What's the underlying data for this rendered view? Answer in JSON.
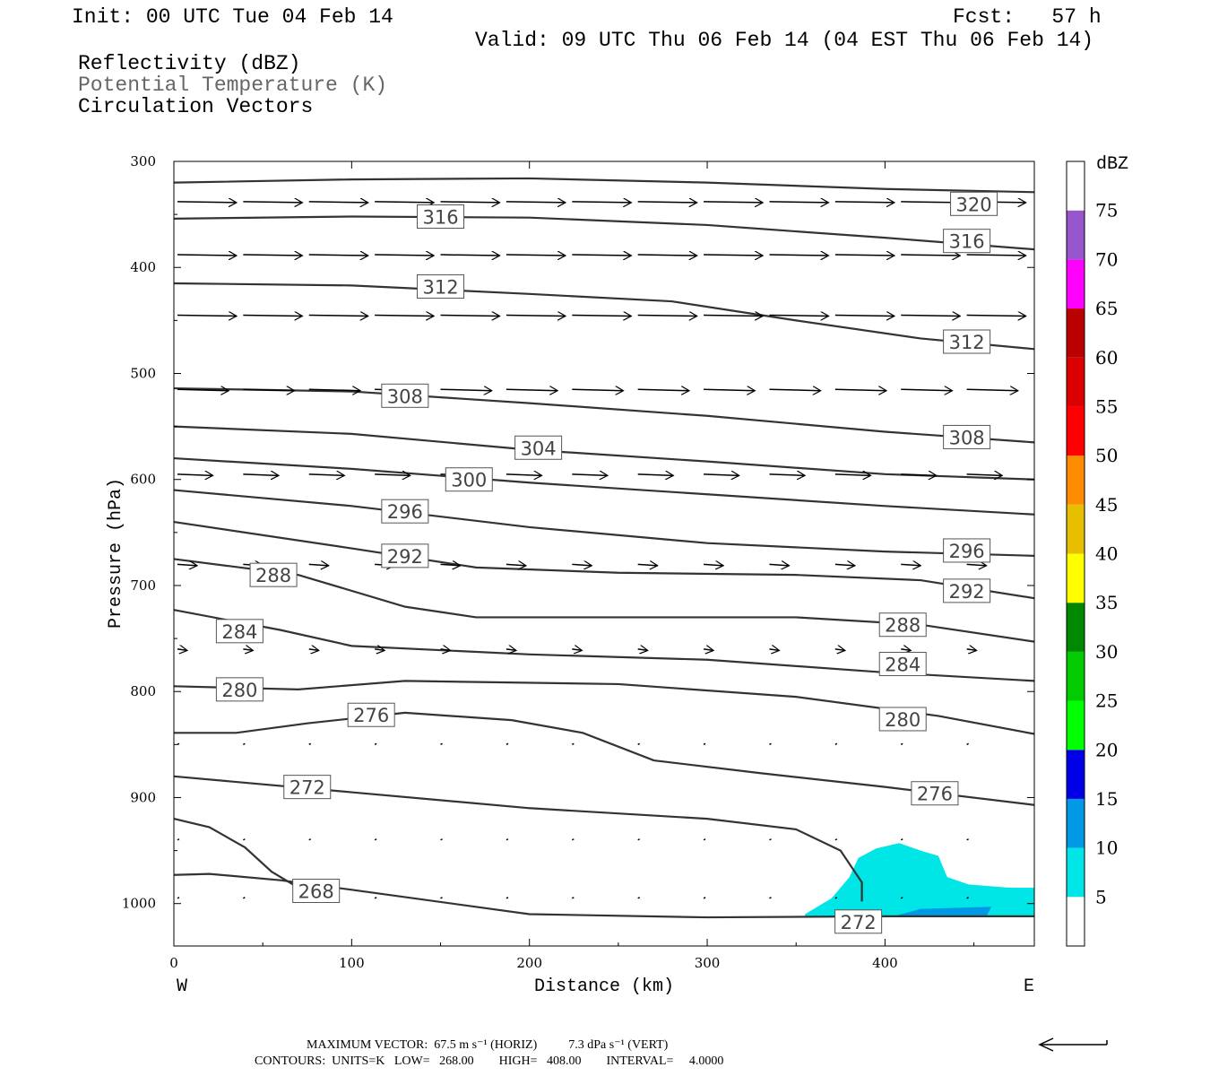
{
  "header": {
    "init": "Init: 00 UTC Tue 04 Feb 14",
    "fcst": "Fcst:   57 h",
    "valid": "Valid: 09 UTC Thu 06 Feb 14 (04 EST Thu 06 Feb 14)",
    "field1": "Reflectivity (dBZ)",
    "field2": "Potential Temperature (K)",
    "field3": "Circulation Vectors"
  },
  "footer": {
    "line1": "MAXIMUM VECTOR:  67.5 m s⁻¹ (HORIZ)          7.3 dPa s⁻¹ (VERT)",
    "line2": "CONTOURS:  UNITS=K   LOW=   268.00        HIGH=   408.00        INTERVAL=     4.0000"
  },
  "colors": {
    "contour": "#333333",
    "refl_5": "#00e6e6",
    "refl_10": "#0099e6"
  },
  "chart_data": {
    "type": "cross-section",
    "xlabel": "Distance (km)",
    "ylabel": "Pressure (hPa)",
    "x_left_label": "W",
    "x_right_label": "E",
    "xlim": [
      0,
      484
    ],
    "ylim": [
      300,
      1040
    ],
    "x_ticks": [
      0,
      100,
      200,
      300,
      400
    ],
    "y_ticks": [
      300,
      400,
      500,
      600,
      700,
      800,
      900,
      1000
    ],
    "colorbar": {
      "title": "dBZ",
      "levels": [
        5,
        10,
        15,
        20,
        25,
        30,
        35,
        40,
        45,
        50,
        55,
        60,
        65,
        70,
        75
      ],
      "colors": [
        "#ffffff",
        "#00e6e6",
        "#0099e6",
        "#0000e6",
        "#00ff00",
        "#00cc00",
        "#008800",
        "#ffff00",
        "#e6c000",
        "#ff8c00",
        "#ff0000",
        "#dd0000",
        "#bb0000",
        "#ff00ff",
        "#9955cc",
        "#ffffff"
      ]
    },
    "contours": [
      {
        "value": 320,
        "label": "320",
        "points": [
          [
            0,
            320
          ],
          [
            100,
            317
          ],
          [
            200,
            316
          ],
          [
            300,
            320
          ],
          [
            400,
            326
          ],
          [
            484,
            329
          ]
        ],
        "labels": [
          [
            450,
            340
          ]
        ]
      },
      {
        "value": 316,
        "label": "316",
        "points": [
          [
            0,
            354
          ],
          [
            100,
            352
          ],
          [
            200,
            353
          ],
          [
            300,
            360
          ],
          [
            400,
            372
          ],
          [
            484,
            383
          ]
        ],
        "labels": [
          [
            150,
            352
          ],
          [
            446,
            375
          ]
        ]
      },
      {
        "value": 312,
        "label": "312",
        "points": [
          [
            0,
            415
          ],
          [
            100,
            417
          ],
          [
            200,
            425
          ],
          [
            280,
            432
          ],
          [
            350,
            450
          ],
          [
            420,
            467
          ],
          [
            484,
            477
          ]
        ],
        "labels": [
          [
            150,
            418
          ],
          [
            446,
            470
          ]
        ]
      },
      {
        "value": 308,
        "label": "308",
        "points": [
          [
            0,
            514
          ],
          [
            100,
            517
          ],
          [
            200,
            528
          ],
          [
            300,
            540
          ],
          [
            400,
            555
          ],
          [
            484,
            565
          ]
        ],
        "labels": [
          [
            130,
            521
          ],
          [
            446,
            560
          ]
        ]
      },
      {
        "value": 304,
        "label": "304",
        "points": [
          [
            0,
            550
          ],
          [
            100,
            557
          ],
          [
            200,
            572
          ],
          [
            300,
            583
          ],
          [
            400,
            595
          ],
          [
            484,
            600
          ]
        ],
        "labels": [
          [
            205,
            570
          ]
        ]
      },
      {
        "value": 300,
        "label": "300",
        "points": [
          [
            0,
            580
          ],
          [
            100,
            590
          ],
          [
            200,
            603
          ],
          [
            300,
            614
          ],
          [
            400,
            625
          ],
          [
            484,
            633
          ]
        ],
        "labels": [
          [
            166,
            600
          ]
        ]
      },
      {
        "value": 296,
        "label": "296",
        "points": [
          [
            0,
            610
          ],
          [
            100,
            625
          ],
          [
            200,
            645
          ],
          [
            300,
            660
          ],
          [
            400,
            668
          ],
          [
            484,
            672
          ]
        ],
        "labels": [
          [
            130,
            630
          ],
          [
            446,
            667
          ]
        ]
      },
      {
        "value": 292,
        "label": "292",
        "points": [
          [
            0,
            640
          ],
          [
            100,
            665
          ],
          [
            170,
            683
          ],
          [
            250,
            688
          ],
          [
            350,
            690
          ],
          [
            420,
            695
          ],
          [
            484,
            712
          ]
        ],
        "labels": [
          [
            130,
            672
          ],
          [
            446,
            705
          ]
        ]
      },
      {
        "value": 288,
        "label": "288",
        "points": [
          [
            0,
            675
          ],
          [
            70,
            690
          ],
          [
            130,
            720
          ],
          [
            170,
            730
          ],
          [
            250,
            730
          ],
          [
            350,
            730
          ],
          [
            420,
            737
          ],
          [
            484,
            753
          ]
        ],
        "labels": [
          [
            56,
            690
          ],
          [
            410,
            737
          ]
        ]
      },
      {
        "value": 284,
        "label": "284",
        "points": [
          [
            0,
            723
          ],
          [
            60,
            742
          ],
          [
            100,
            757
          ],
          [
            200,
            765
          ],
          [
            300,
            770
          ],
          [
            400,
            782
          ],
          [
            484,
            790
          ]
        ],
        "labels": [
          [
            37,
            743
          ],
          [
            410,
            774
          ]
        ]
      },
      {
        "value": 280,
        "label": "280",
        "points": [
          [
            0,
            795
          ],
          [
            70,
            798
          ],
          [
            130,
            790
          ],
          [
            250,
            793
          ],
          [
            350,
            805
          ],
          [
            430,
            823
          ],
          [
            484,
            840
          ]
        ],
        "labels": [
          [
            37,
            798
          ],
          [
            410,
            826
          ]
        ]
      },
      {
        "value": 276,
        "label": "276",
        "points": [
          [
            0,
            839
          ],
          [
            35,
            839
          ],
          [
            75,
            830
          ],
          [
            130,
            820
          ],
          [
            190,
            827
          ],
          [
            230,
            839
          ],
          [
            270,
            865
          ],
          [
            330,
            877
          ],
          [
            400,
            890
          ],
          [
            484,
            907
          ]
        ],
        "labels": [
          [
            111,
            822
          ],
          [
            428,
            896
          ]
        ]
      },
      {
        "value": 272,
        "label": "272",
        "points": [
          [
            0,
            880
          ],
          [
            100,
            895
          ],
          [
            200,
            910
          ],
          [
            300,
            920
          ],
          [
            350,
            930
          ],
          [
            375,
            950
          ],
          [
            387,
            980
          ],
          [
            387,
            998
          ]
        ],
        "labels": [
          [
            75,
            890
          ],
          [
            385,
            1017
          ]
        ]
      },
      {
        "value": 268,
        "label": "268",
        "points": [
          [
            0,
            920
          ],
          [
            20,
            928
          ],
          [
            40,
            947
          ],
          [
            55,
            970
          ],
          [
            70,
            985
          ],
          [
            90,
            990
          ]
        ],
        "labels": [
          [
            80,
            988
          ]
        ]
      },
      {
        "value": 272,
        "label": "",
        "points": [
          [
            0,
            973
          ],
          [
            20,
            972
          ],
          [
            60,
            978
          ],
          [
            100,
            987
          ],
          [
            200,
            1010
          ],
          [
            300,
            1013
          ],
          [
            400,
            1012
          ],
          [
            484,
            1012
          ]
        ],
        "labels": []
      }
    ],
    "vector_rows": [
      {
        "p": 338,
        "u": 30
      },
      {
        "p": 388,
        "u": 30
      },
      {
        "p": 445,
        "u": 30
      },
      {
        "p": 515,
        "u": 26
      },
      {
        "p": 595,
        "u": 18
      },
      {
        "p": 680,
        "u": 10
      },
      {
        "p": 760,
        "u": 5
      },
      {
        "p": 850,
        "u": 1
      },
      {
        "p": 940,
        "u": 1
      },
      {
        "p": 995,
        "u": 0.5
      }
    ],
    "reflectivity": [
      {
        "dbz": 5,
        "points": [
          [
            355,
            1010
          ],
          [
            370,
            995
          ],
          [
            380,
            975
          ],
          [
            385,
            957
          ],
          [
            395,
            948
          ],
          [
            408,
            943
          ],
          [
            420,
            950
          ],
          [
            430,
            955
          ],
          [
            435,
            975
          ],
          [
            447,
            982
          ],
          [
            470,
            985
          ],
          [
            484,
            985
          ],
          [
            484,
            1012
          ],
          [
            400,
            1013
          ],
          [
            355,
            1012
          ]
        ]
      },
      {
        "dbz": 10,
        "points": [
          [
            405,
            1012
          ],
          [
            420,
            1005
          ],
          [
            460,
            1003
          ],
          [
            457,
            1012
          ]
        ]
      }
    ]
  }
}
